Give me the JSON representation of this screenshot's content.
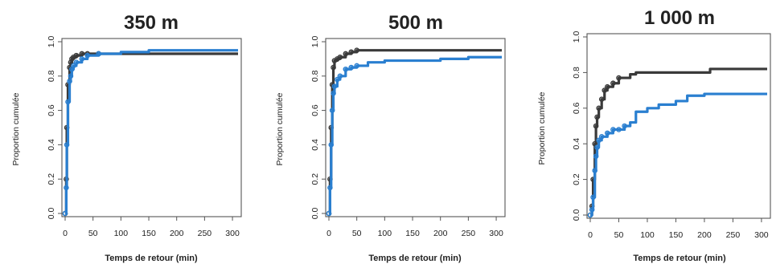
{
  "figure": {
    "background": "#ffffff",
    "frame_color": "#555555",
    "series_colors": {
      "dark": "#3a3a3a",
      "blue": "#2a7fd0"
    }
  },
  "chart_data": [
    {
      "type": "line",
      "title": "350 m",
      "xlabel": "Temps de retour (min)",
      "ylabel": "Proportion cumulée",
      "xlim": [
        0,
        310
      ],
      "ylim": [
        0,
        1.0
      ],
      "xticks": [
        0,
        50,
        100,
        150,
        200,
        250,
        300
      ],
      "yticks": [
        "0.0",
        "0.2",
        "0.4",
        "0.6",
        "0.8",
        "1.0"
      ],
      "series": [
        {
          "color": "dark",
          "x": [
            0,
            2,
            3,
            5,
            8,
            10,
            12,
            15,
            20,
            30,
            40,
            60,
            100,
            150,
            200,
            250,
            300,
            310
          ],
          "y": [
            0,
            0.2,
            0.5,
            0.75,
            0.85,
            0.88,
            0.9,
            0.91,
            0.92,
            0.93,
            0.93,
            0.93,
            0.93,
            0.93,
            0.93,
            0.93,
            0.93,
            0.93
          ]
        },
        {
          "color": "blue",
          "x": [
            0,
            2,
            3,
            5,
            8,
            10,
            12,
            15,
            20,
            30,
            40,
            60,
            100,
            150,
            200,
            250,
            300,
            310
          ],
          "y": [
            0,
            0.15,
            0.4,
            0.65,
            0.77,
            0.8,
            0.84,
            0.86,
            0.88,
            0.9,
            0.92,
            0.93,
            0.94,
            0.95,
            0.95,
            0.95,
            0.95,
            0.95
          ]
        }
      ]
    },
    {
      "type": "line",
      "title": "500 m",
      "xlabel": "Temps de retour (min)",
      "ylabel": "Proportion cumulée",
      "xlim": [
        0,
        310
      ],
      "ylim": [
        0,
        1.0
      ],
      "xticks": [
        0,
        50,
        100,
        150,
        200,
        250,
        300
      ],
      "yticks": [
        "0.0",
        "0.2",
        "0.4",
        "0.6",
        "0.8",
        "1.0"
      ],
      "series": [
        {
          "color": "dark",
          "x": [
            0,
            2,
            4,
            6,
            8,
            10,
            15,
            20,
            30,
            40,
            50,
            70,
            100,
            150,
            200,
            250,
            300,
            310
          ],
          "y": [
            0,
            0.2,
            0.5,
            0.75,
            0.85,
            0.89,
            0.9,
            0.91,
            0.93,
            0.94,
            0.95,
            0.95,
            0.95,
            0.95,
            0.95,
            0.95,
            0.95,
            0.95
          ]
        },
        {
          "color": "blue",
          "x": [
            0,
            2,
            4,
            6,
            8,
            10,
            15,
            20,
            30,
            40,
            50,
            70,
            100,
            150,
            200,
            250,
            300,
            310
          ],
          "y": [
            0,
            0.15,
            0.4,
            0.6,
            0.7,
            0.74,
            0.78,
            0.8,
            0.84,
            0.85,
            0.86,
            0.88,
            0.89,
            0.89,
            0.9,
            0.91,
            0.91,
            0.91
          ]
        }
      ]
    },
    {
      "type": "line",
      "title": "1 000 m",
      "xlabel": "Temps de retour (min)",
      "ylabel": "Proportion cumulée",
      "xlim": [
        0,
        310
      ],
      "ylim": [
        0,
        1.0
      ],
      "xticks": [
        0,
        50,
        100,
        150,
        200,
        250,
        300
      ],
      "yticks": [
        "0.0",
        "0.2",
        "0.4",
        "0.6",
        "0.8",
        "1.0"
      ],
      "series": [
        {
          "color": "dark",
          "x": [
            0,
            3,
            5,
            8,
            10,
            12,
            15,
            20,
            25,
            30,
            40,
            50,
            70,
            80,
            100,
            150,
            200,
            210,
            250,
            300,
            310
          ],
          "y": [
            0,
            0.05,
            0.2,
            0.4,
            0.5,
            0.55,
            0.6,
            0.65,
            0.7,
            0.72,
            0.74,
            0.77,
            0.79,
            0.8,
            0.8,
            0.8,
            0.8,
            0.82,
            0.82,
            0.82,
            0.82
          ]
        },
        {
          "color": "blue",
          "x": [
            0,
            3,
            5,
            8,
            10,
            12,
            15,
            20,
            30,
            40,
            50,
            60,
            70,
            80,
            100,
            120,
            150,
            170,
            200,
            250,
            300,
            310
          ],
          "y": [
            0,
            0.03,
            0.1,
            0.25,
            0.33,
            0.38,
            0.42,
            0.44,
            0.46,
            0.48,
            0.48,
            0.5,
            0.52,
            0.58,
            0.6,
            0.62,
            0.64,
            0.67,
            0.68,
            0.68,
            0.68,
            0.68
          ]
        }
      ]
    }
  ]
}
